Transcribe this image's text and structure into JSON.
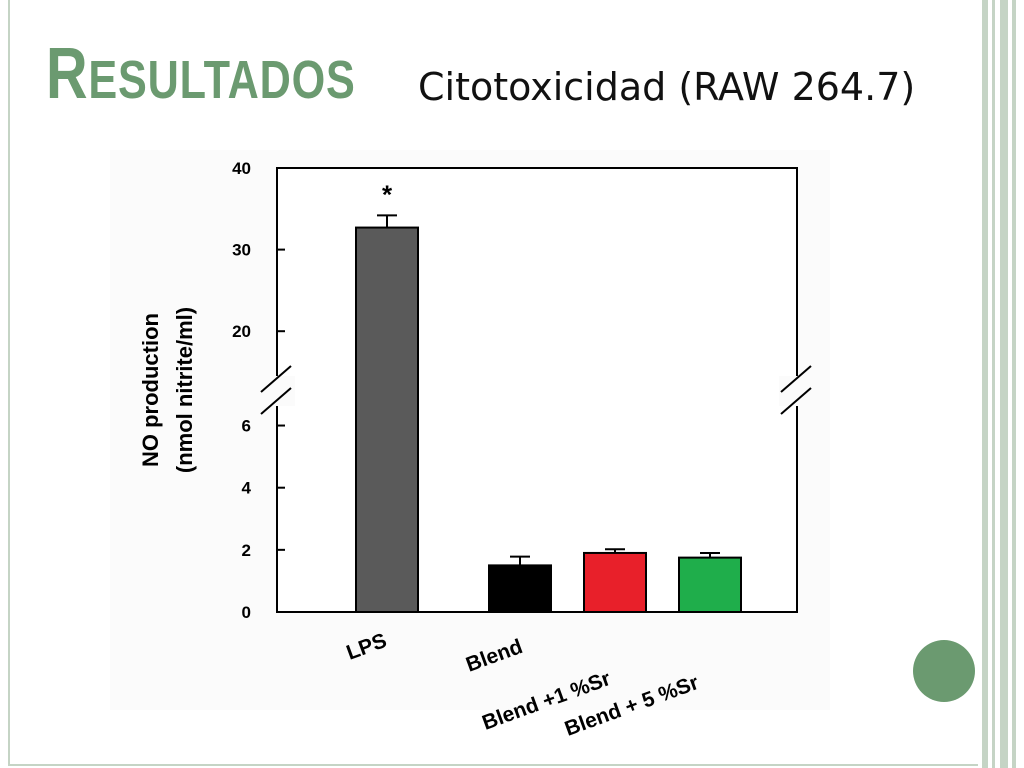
{
  "slide": {
    "title": "Resultados",
    "subtitle": "Citotoxicidad (RAW 264.7)",
    "accent_color": "#6b9a70"
  },
  "chart_data": {
    "type": "bar",
    "title": "",
    "xlabel": "",
    "ylabel": [
      "NO production",
      "(nmol  nitrite/ml)"
    ],
    "categories": [
      "LPS",
      "Blend",
      "Blend +1 %Sr",
      "Blend + 5 %Sr"
    ],
    "values": [
      32.7,
      1.5,
      1.9,
      1.75
    ],
    "errors": [
      1.5,
      0.28,
      0.12,
      0.15
    ],
    "colors": [
      "#5a5a5a",
      "#000000",
      "#e8202a",
      "#1fae4b"
    ],
    "annotations": [
      {
        "category": "LPS",
        "text": "*"
      }
    ],
    "axis_break": true,
    "ylim_lower": [
      0,
      6.5
    ],
    "ylim_upper": [
      15,
      40
    ],
    "yticks_lower": [
      0,
      2,
      4,
      6
    ],
    "yticks_upper": [
      20,
      30,
      40
    ],
    "grid": false
  }
}
